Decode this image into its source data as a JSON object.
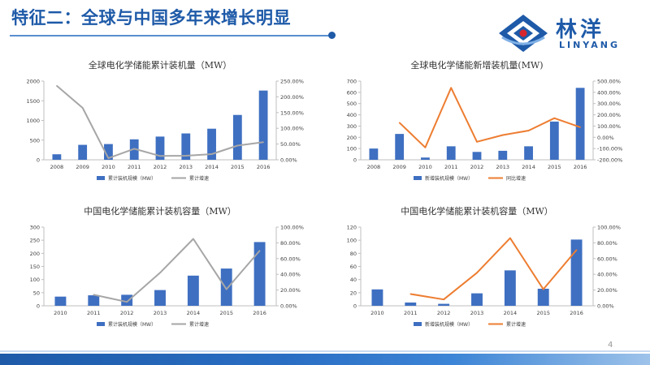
{
  "header": {
    "title": "特征二：全球与中国多年来增长明显",
    "logo_cn": "林洋",
    "logo_en": "LINYANG"
  },
  "page_number": "4",
  "colors": {
    "bar": "#3e6fc1",
    "gray_line": "#a6a6a6",
    "orange_line": "#ed7d31",
    "title_blue": "#1e5aa8"
  },
  "chart_data": [
    {
      "type": "bar",
      "title": "全球电化学储能累计装机量（MW）",
      "categories": [
        "2008",
        "2009",
        "2010",
        "2011",
        "2012",
        "2013",
        "2014",
        "2015",
        "2016"
      ],
      "series": [
        {
          "name": "累计装机规模（MW）",
          "type": "bar",
          "axis": "left",
          "values": [
            140,
            380,
            400,
            520,
            590,
            670,
            790,
            1140,
            1760
          ]
        },
        {
          "name": "累计增速",
          "type": "line",
          "axis": "right",
          "values": [
            235,
            165,
            5,
            35,
            12,
            13,
            18,
            45,
            56
          ]
        }
      ],
      "left_axis": {
        "min": 0,
        "max": 2000,
        "ticks": [
          "0",
          "500",
          "1000",
          "1500",
          "2000"
        ]
      },
      "right_axis": {
        "min": 0,
        "max": 250,
        "ticks": [
          "0.00%",
          "50.00%",
          "100.00%",
          "150.00%",
          "200.00%",
          "250.00%"
        ]
      },
      "legend_position": "bottom",
      "grid": false
    },
    {
      "type": "bar",
      "title": "全球电化学储能新增装机量(MW)",
      "categories": [
        "2008",
        "2009",
        "2010",
        "2011",
        "2012",
        "2013",
        "2014",
        "2015",
        "2016"
      ],
      "series": [
        {
          "name": "新增装机规模（MW）",
          "type": "bar",
          "axis": "left",
          "values": [
            100,
            230,
            20,
            120,
            70,
            80,
            120,
            340,
            640
          ]
        },
        {
          "name": "同比增速",
          "type": "line",
          "axis": "right",
          "values": [
            null,
            130,
            -90,
            440,
            -40,
            20,
            60,
            170,
            90
          ]
        }
      ],
      "left_axis": {
        "min": 0,
        "max": 700,
        "ticks": [
          "0",
          "100",
          "200",
          "300",
          "400",
          "500",
          "600",
          "700"
        ]
      },
      "right_axis": {
        "min": -200,
        "max": 500,
        "ticks": [
          "-200.00%",
          "-100.00%",
          "0.00%",
          "100.00%",
          "200.00%",
          "300.00%",
          "400.00%",
          "500.00%"
        ]
      },
      "legend_position": "bottom",
      "grid": false
    },
    {
      "type": "bar",
      "title": "中国电化学储能累计装机容量（MW）",
      "categories": [
        "2010",
        "2011",
        "2012",
        "2013",
        "2014",
        "2015",
        "2016"
      ],
      "series": [
        {
          "name": "累计装机规模（MW）",
          "type": "bar",
          "axis": "left",
          "values": [
            35,
            40,
            42,
            60,
            115,
            142,
            243
          ]
        },
        {
          "name": "累计增速",
          "type": "line",
          "axis": "right",
          "values": [
            null,
            14,
            5,
            42,
            85,
            21,
            70
          ]
        }
      ],
      "left_axis": {
        "min": 0,
        "max": 300,
        "ticks": [
          "0",
          "50",
          "100",
          "150",
          "200",
          "250",
          "300"
        ]
      },
      "right_axis": {
        "min": 0,
        "max": 100,
        "ticks": [
          "0.00%",
          "20.00%",
          "40.00%",
          "60.00%",
          "80.00%",
          "100.00%"
        ]
      },
      "legend_position": "bottom",
      "grid": false
    },
    {
      "type": "bar",
      "title": "中国电化学储能累计装机容量（MW）",
      "categories": [
        "2010",
        "2011",
        "2012",
        "2013",
        "2014",
        "2015",
        "2016"
      ],
      "series": [
        {
          "name": "新增装机规模（MW）",
          "type": "bar",
          "axis": "left",
          "values": [
            25,
            5,
            3,
            19,
            54,
            26,
            101
          ]
        },
        {
          "name": "累计增速",
          "type": "line",
          "axis": "right",
          "values": [
            null,
            15,
            8,
            42,
            86,
            21,
            71
          ]
        }
      ],
      "left_axis": {
        "min": 0,
        "max": 120,
        "ticks": [
          "0",
          "20",
          "40",
          "60",
          "80",
          "100",
          "120"
        ]
      },
      "right_axis": {
        "min": 0,
        "max": 100,
        "ticks": [
          "0.00%",
          "20.00%",
          "40.00%",
          "60.00%",
          "80.00%",
          "100.00%"
        ]
      },
      "legend_position": "bottom",
      "grid": false
    }
  ]
}
